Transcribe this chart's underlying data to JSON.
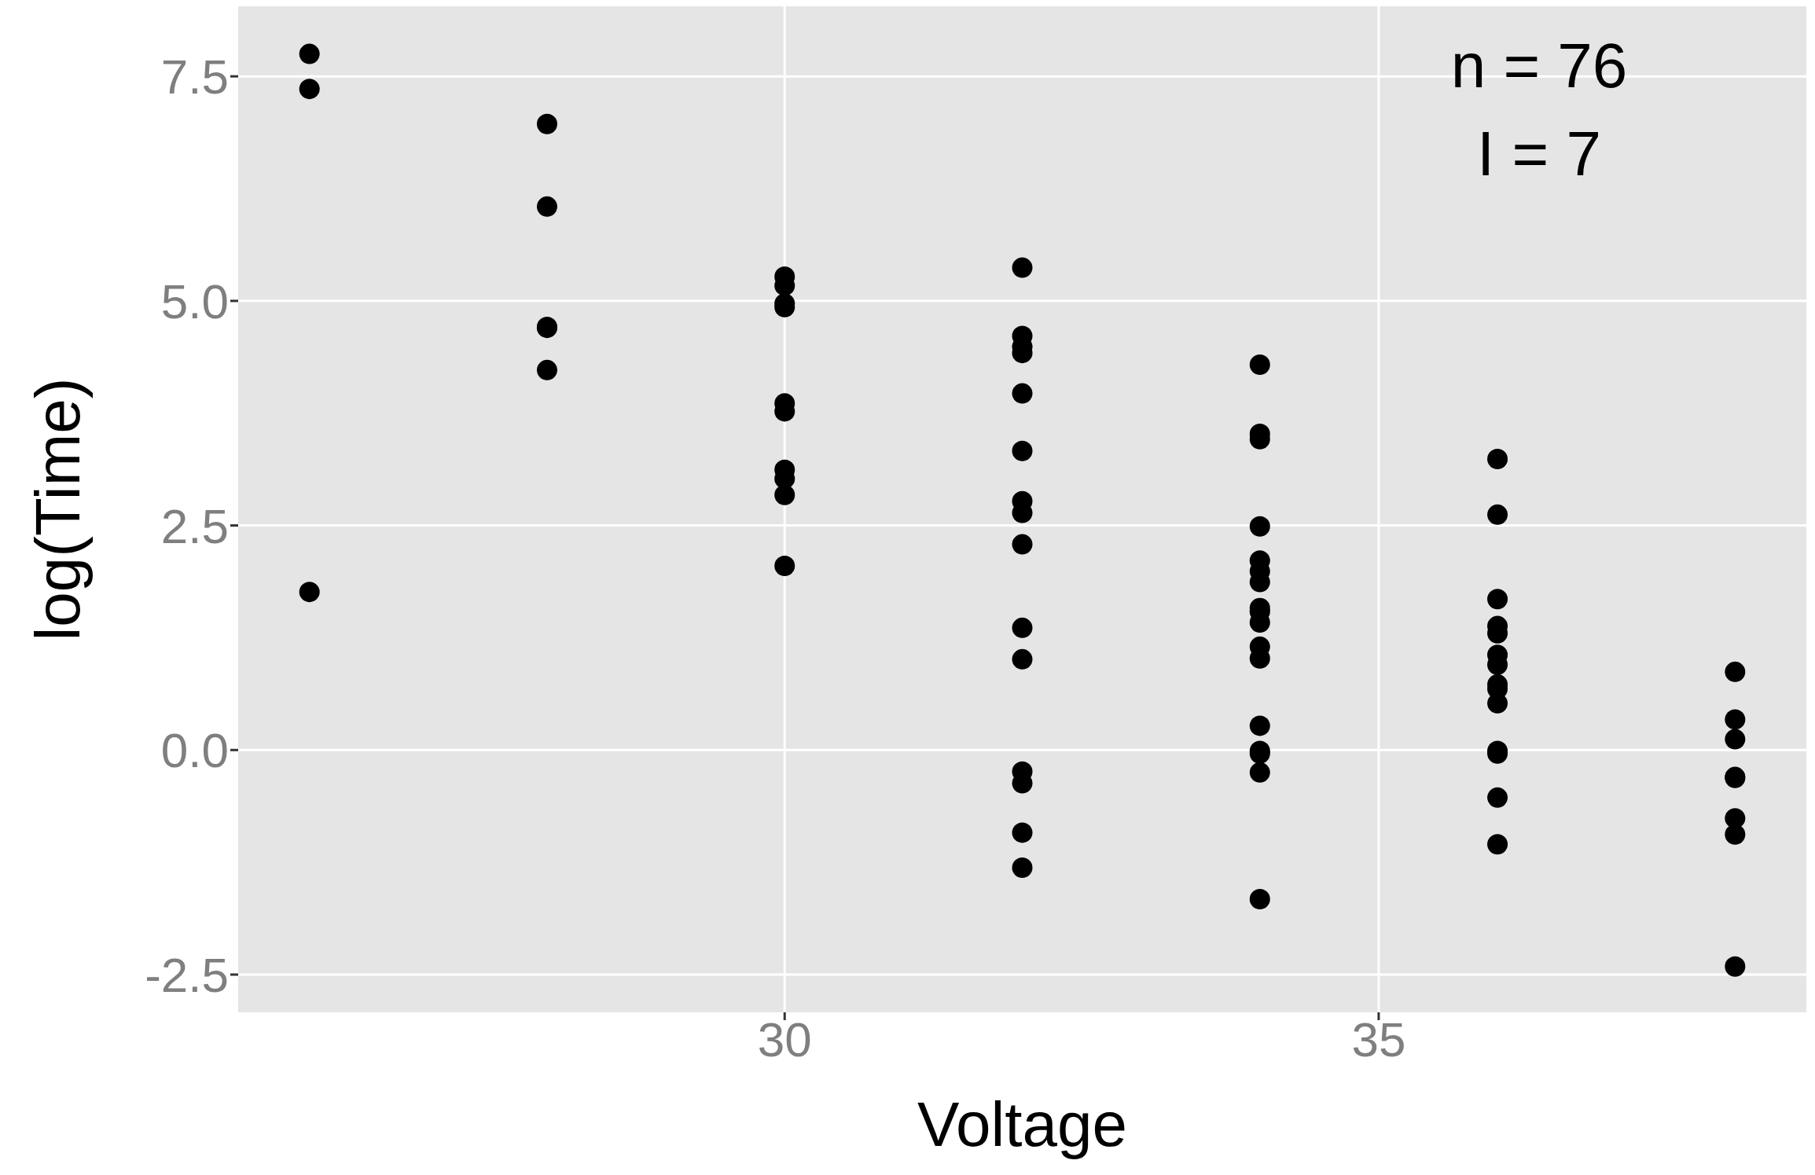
{
  "chart_data": {
    "type": "scatter",
    "xlabel": "Voltage",
    "ylabel": "log(Time)",
    "annotations": [
      "n = 76",
      "I = 7"
    ],
    "xlim": [
      25.4,
      38.6
    ],
    "ylim": [
      -2.92,
      8.28
    ],
    "xticks": [
      30,
      35
    ],
    "yticks": [
      {
        "value": -2.5,
        "label": "-2.5"
      },
      {
        "value": 0,
        "label": "0.0"
      },
      {
        "value": 2.5,
        "label": "2.5"
      },
      {
        "value": 5,
        "label": "5.0"
      },
      {
        "value": 7.5,
        "label": "7.5"
      }
    ],
    "grid": true,
    "legend": false,
    "marker": "circle",
    "series": [
      {
        "color": "#000000",
        "x": [
          26,
          26,
          26,
          28,
          28,
          28,
          28,
          28,
          30,
          30,
          30,
          30,
          30,
          30,
          30,
          30,
          30,
          30,
          32,
          32,
          32,
          32,
          32,
          32,
          32,
          32,
          32,
          32,
          32,
          32,
          32,
          32,
          32,
          34,
          34,
          34,
          34,
          34,
          34,
          34,
          34,
          34,
          34,
          34,
          34,
          34,
          34,
          34,
          34,
          34,
          36,
          36,
          36,
          36,
          36,
          36,
          36,
          36,
          36,
          36,
          36,
          36,
          36,
          36,
          38,
          38,
          38,
          38,
          38,
          38,
          38,
          38
        ],
        "values": [
          1.76,
          7.36,
          7.75,
          4.23,
          4.7,
          4.71,
          6.05,
          6.97,
          2.05,
          2.84,
          3.02,
          3.12,
          3.77,
          3.86,
          4.93,
          4.97,
          5.17,
          5.27,
          -1.31,
          -0.92,
          -0.37,
          -0.24,
          1.01,
          1.36,
          2.29,
          2.64,
          2.77,
          3.33,
          3.97,
          4.42,
          4.49,
          4.61,
          5.37,
          -1.66,
          -0.25,
          -0.04,
          -0.01,
          0.27,
          1.02,
          1.15,
          1.42,
          1.54,
          1.58,
          1.87,
          1.99,
          2.11,
          2.49,
          3.46,
          3.52,
          4.29,
          -1.05,
          -0.53,
          -0.04,
          -0.01,
          0.52,
          0.68,
          0.73,
          0.95,
          1.06,
          1.3,
          1.38,
          1.68,
          2.62,
          3.24,
          -2.41,
          -0.94,
          -0.76,
          -0.31,
          -0.3,
          0.12,
          0.34,
          0.87
        ]
      }
    ]
  }
}
